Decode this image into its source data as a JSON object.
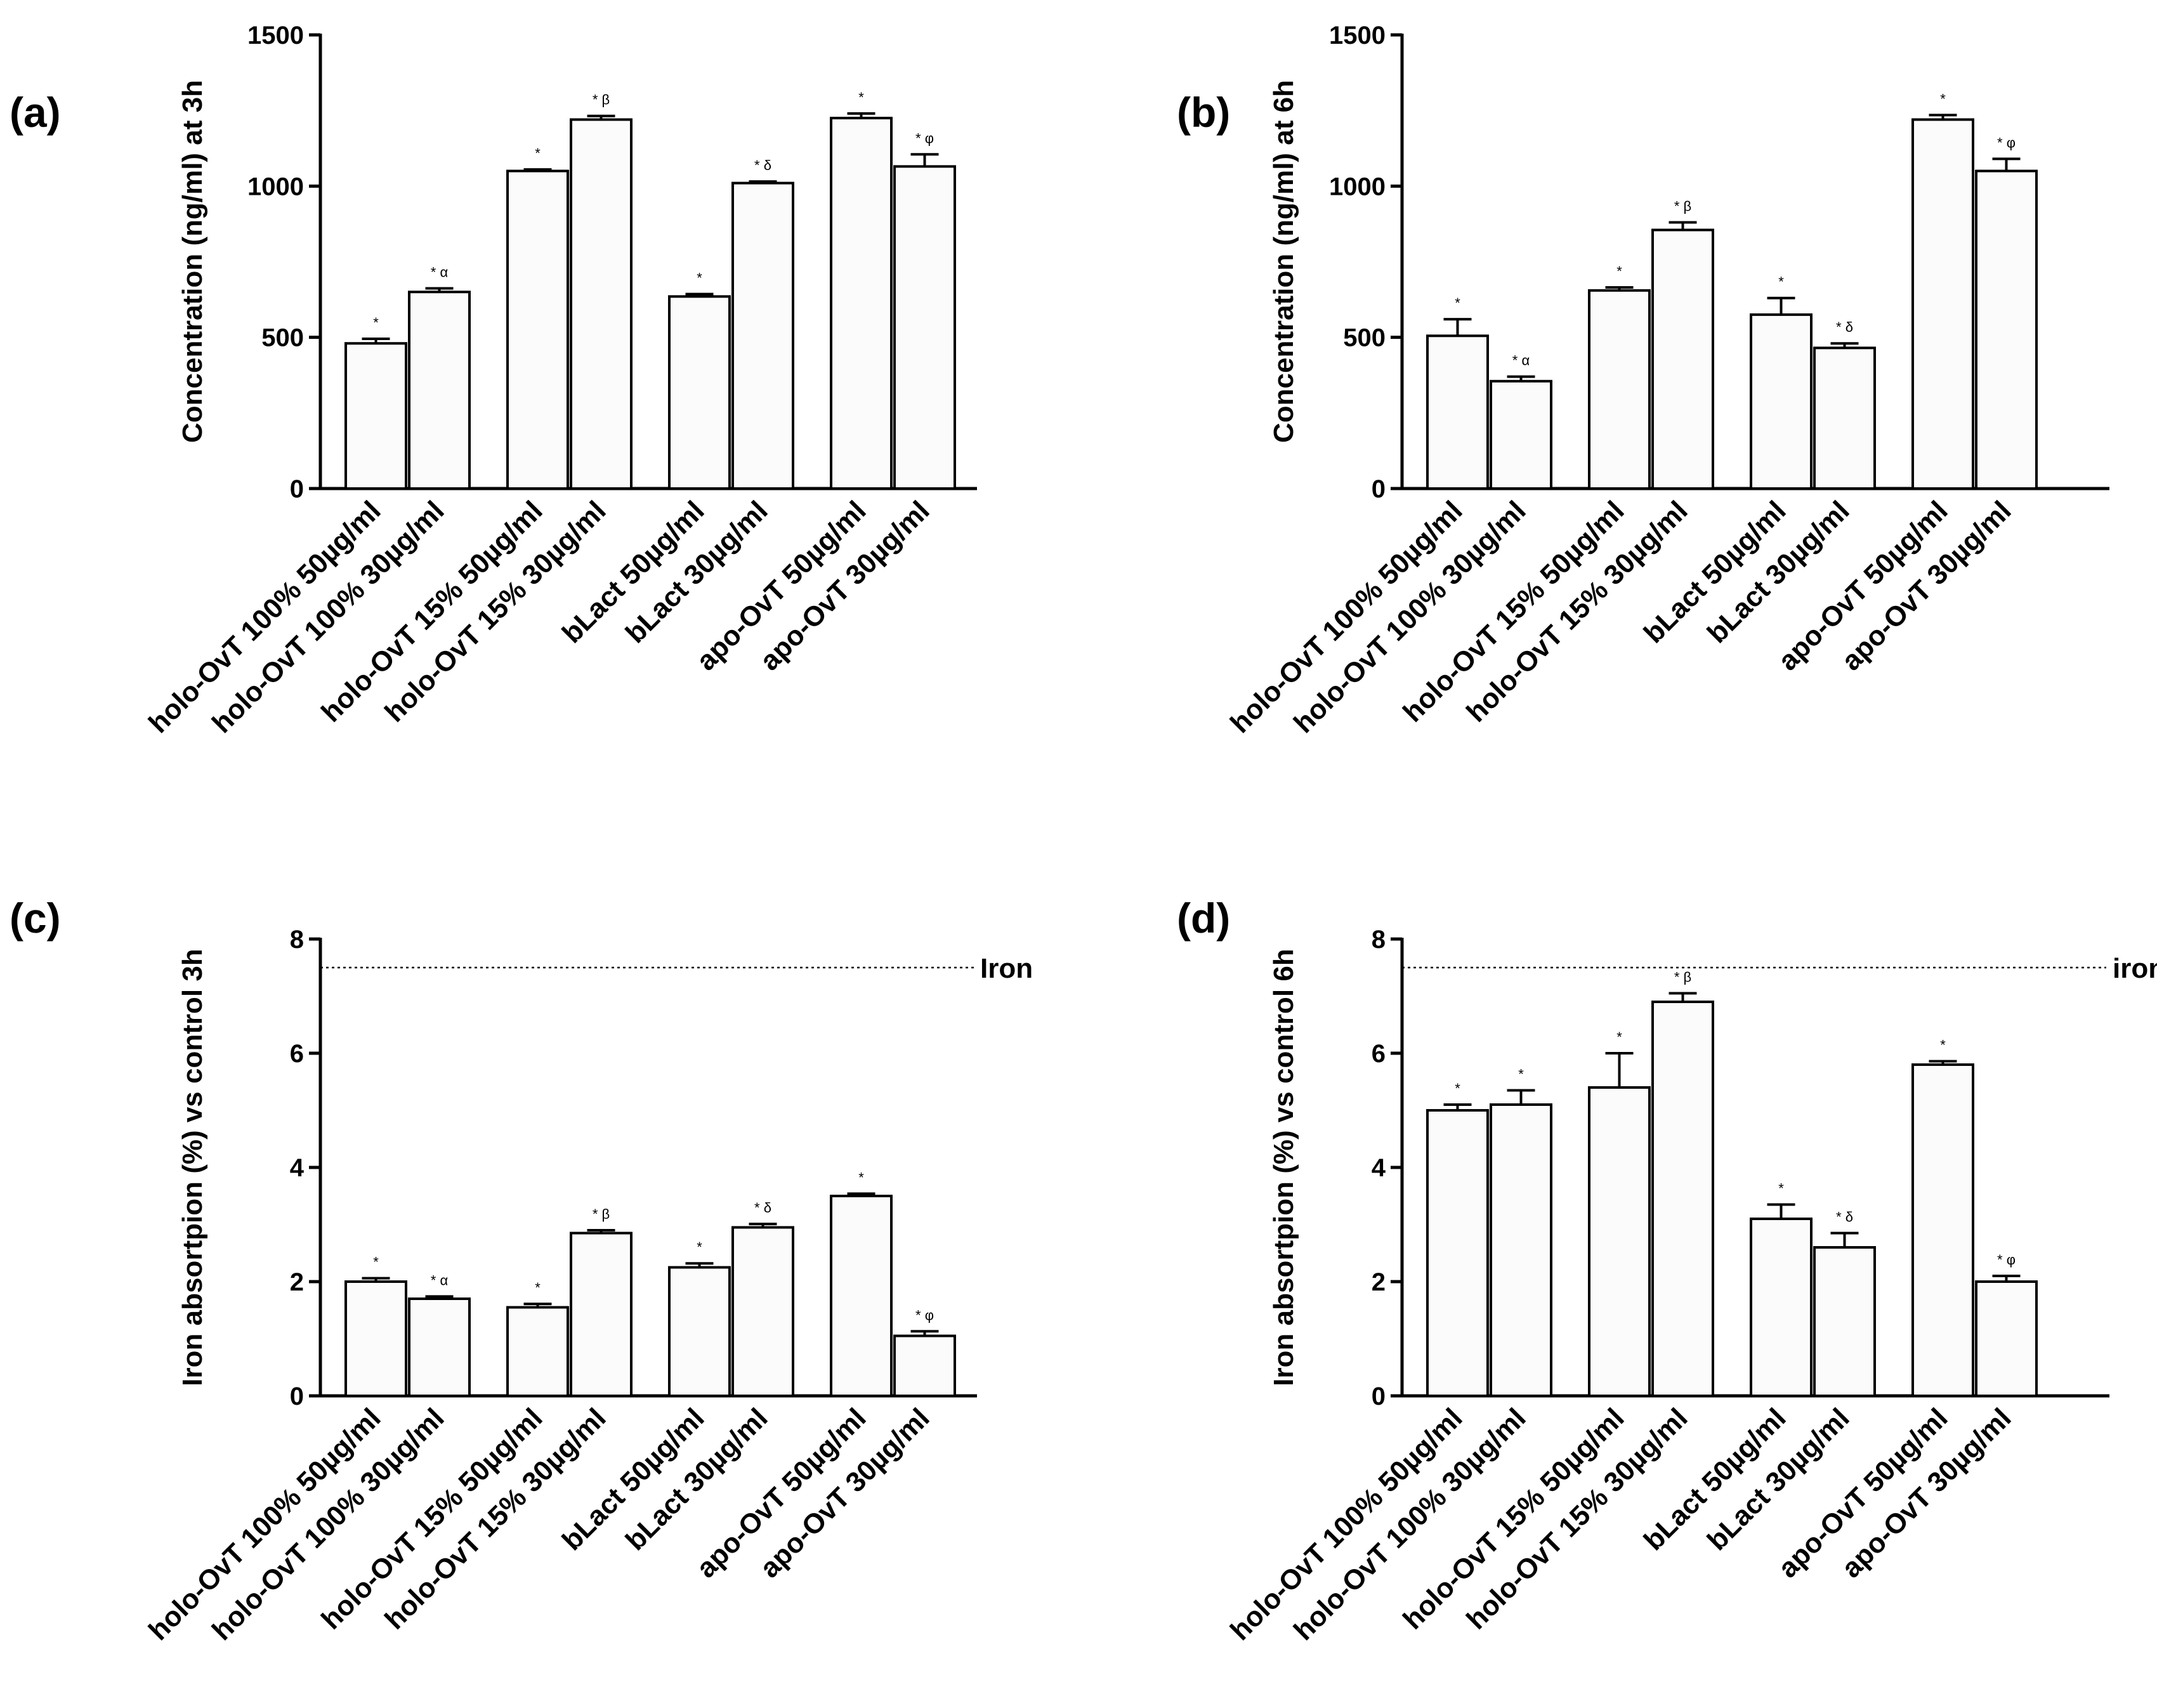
{
  "chart_data": [
    {
      "panel": "(a)",
      "type": "bar",
      "ylabel": "Concentration (ng/ml) at 3h",
      "xlabel": "",
      "ylim": [
        0,
        1500
      ],
      "yticks": [
        0,
        500,
        1000,
        1500
      ],
      "categories": [
        "holo-OvT 100% 50µg/ml",
        "holo-OvT 100% 30µg/ml",
        "holo-OvT 15% 50µg/ml",
        "holo-OvT 15% 30µg/ml",
        "bLact 50µg/ml",
        "bLact 30µg/ml",
        "apo-OvT 50µg/ml",
        "apo-OvT 30µg/ml"
      ],
      "values": [
        480,
        650,
        1050,
        1220,
        635,
        1010,
        1225,
        1065
      ],
      "errors": [
        15,
        12,
        5,
        12,
        8,
        5,
        15,
        40
      ],
      "annotations": [
        "*",
        "* α",
        "*",
        "* β",
        "*",
        "* δ",
        "*",
        "* φ"
      ]
    },
    {
      "panel": "(b)",
      "type": "bar",
      "ylabel": "Concentration (ng/ml) at 6h",
      "xlabel": "",
      "ylim": [
        0,
        1500
      ],
      "yticks": [
        0,
        500,
        1000,
        1500
      ],
      "categories": [
        "holo-OvT 100% 50µg/ml",
        "holo-OvT 100% 30µg/ml",
        "holo-OvT 15% 50µg/ml",
        "holo-OvT 15% 30µg/ml",
        "bLact 50µg/ml",
        "bLact 30µg/ml",
        "apo-OvT 50µg/ml",
        "apo-OvT 30µg/ml"
      ],
      "values": [
        505,
        355,
        655,
        855,
        575,
        465,
        1220,
        1050
      ],
      "errors": [
        55,
        15,
        10,
        25,
        55,
        15,
        15,
        40
      ],
      "annotations": [
        "*",
        "* α",
        "*",
        "* β",
        "*",
        "* δ",
        "*",
        "* φ"
      ]
    },
    {
      "panel": "(c)",
      "type": "bar",
      "ylabel": "Iron absortpion (%) vs control 3h",
      "xlabel": "",
      "ylim": [
        0,
        8
      ],
      "yticks": [
        0,
        2,
        4,
        6,
        8
      ],
      "categories": [
        "holo-OvT 100% 50µg/ml",
        "holo-OvT 100% 30µg/ml",
        "holo-OvT 15% 50µg/ml",
        "holo-OvT 15% 30µg/ml",
        "bLact 50µg/ml",
        "bLact 30µg/ml",
        "apo-OvT 50µg/ml",
        "apo-OvT 30µg/ml"
      ],
      "values": [
        2.0,
        1.7,
        1.55,
        2.85,
        2.25,
        2.95,
        3.5,
        1.05
      ],
      "errors": [
        0.06,
        0.04,
        0.06,
        0.05,
        0.07,
        0.06,
        0.04,
        0.08
      ],
      "annotations": [
        "*",
        "* α",
        "*",
        "* β",
        "*",
        "* δ",
        "*",
        "* φ"
      ],
      "reference_line": {
        "value": 7.5,
        "label": "Iron"
      }
    },
    {
      "panel": "(d)",
      "type": "bar",
      "ylabel": "Iron absortpion (%) vs control 6h",
      "xlabel": "",
      "ylim": [
        0,
        8
      ],
      "yticks": [
        0,
        2,
        4,
        6,
        8
      ],
      "categories": [
        "holo-OvT 100% 50µg/ml",
        "holo-OvT 100% 30µg/ml",
        "holo-OvT 15% 50µg/ml",
        "holo-OvT 15% 30µg/ml",
        "bLact 50µg/ml",
        "bLact 30µg/ml",
        "apo-OvT 50µg/ml",
        "apo-OvT 30µg/ml"
      ],
      "values": [
        5.0,
        5.1,
        5.4,
        6.9,
        3.1,
        2.6,
        5.8,
        2.0
      ],
      "errors": [
        0.1,
        0.25,
        0.6,
        0.15,
        0.25,
        0.25,
        0.06,
        0.1
      ],
      "annotations": [
        "*",
        "*",
        "*",
        "* β",
        "*",
        "* δ",
        "*",
        "* φ"
      ],
      "reference_line": {
        "value": 7.5,
        "label": "iron"
      }
    }
  ]
}
